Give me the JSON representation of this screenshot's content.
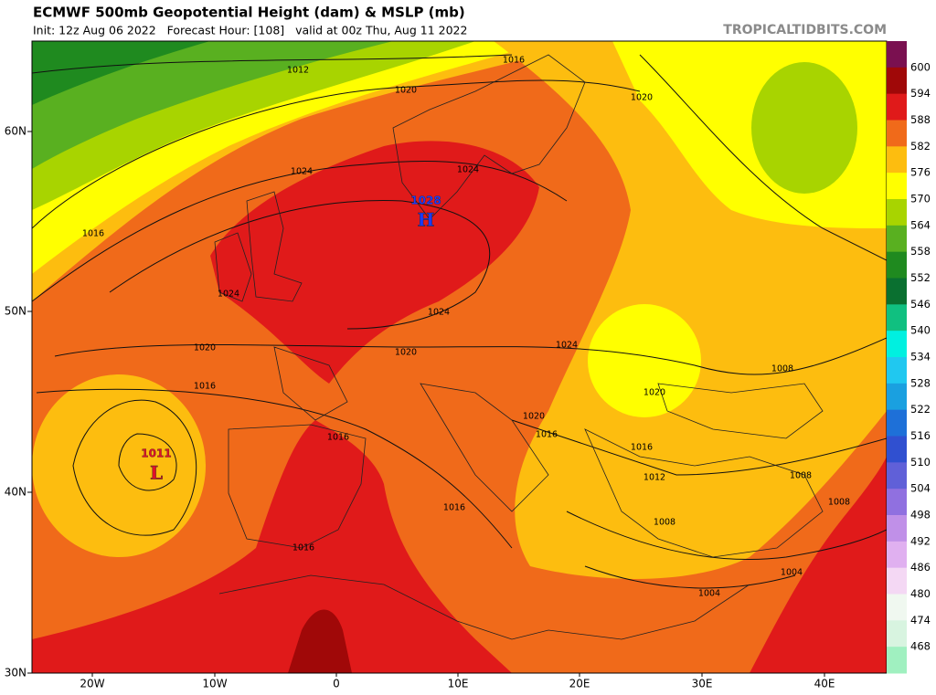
{
  "header": {
    "title": "ECMWF 500mb Geopotential Height (dam) & MSLP (mb)",
    "subtitle": "Init: 12z Aug 06 2022   Forecast Hour: [108]   valid at 00z Thu, Aug 11 2022",
    "watermark": "TROPICALTIDBITS.COM"
  },
  "axes": {
    "lat_labels": [
      "60N",
      "50N",
      "40N",
      "30N"
    ],
    "lon_labels": [
      "20W",
      "10W",
      "0",
      "10E",
      "20E",
      "30E",
      "40E"
    ]
  },
  "colorbar": {
    "labels": [
      "600",
      "594",
      "588",
      "582",
      "576",
      "570",
      "564",
      "558",
      "552",
      "546",
      "540",
      "534",
      "528",
      "522",
      "516",
      "510",
      "504",
      "498",
      "492",
      "486",
      "480",
      "474",
      "468"
    ],
    "colors": [
      "#7a1050",
      "#a00808",
      "#e01a1a",
      "#f06a1a",
      "#fdbd0f",
      "#ffff00",
      "#a8d400",
      "#59b020",
      "#1f8a1f",
      "#0a7030",
      "#10c080",
      "#00f0e0",
      "#20c8f0",
      "#1aa0e0",
      "#1e70d8",
      "#3050d0",
      "#6060d8",
      "#9070e0",
      "#c090e8",
      "#e0b0f0",
      "#f4d8f4",
      "#f0f8f0",
      "#d8f4e0",
      "#a0f0c0"
    ]
  },
  "pressure_centers": [
    {
      "value": "1028",
      "letter": "H"
    },
    {
      "value": "1011",
      "letter": "L"
    }
  ],
  "isobar_labels": [
    "1012",
    "1016",
    "1020",
    "1020",
    "1024",
    "1024",
    "1016",
    "1024",
    "1024",
    "1020",
    "1020",
    "1024",
    "1016",
    "1008",
    "1020",
    "1016",
    "1020",
    "1016",
    "1016",
    "1012",
    "1008",
    "1008",
    "1016",
    "1008",
    "1016",
    "1004",
    "1004"
  ]
}
